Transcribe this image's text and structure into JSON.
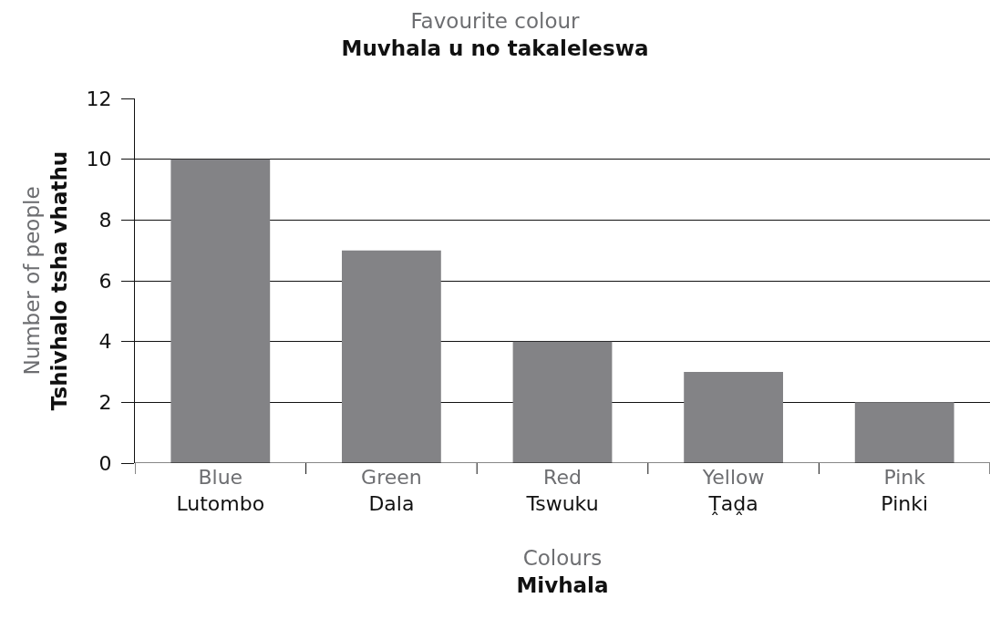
{
  "chart_data": {
    "type": "bar",
    "title": "Favourite colour\nMuvhala u no takaleleswa",
    "xlabel": "Colours\nMivhala",
    "ylabel": "Number of people\nTshivhalo tsha vhathu",
    "categories": [
      "Blue\nLutombo",
      "Green\nDala",
      "Red\nTswuku",
      "Yellow\nṰaḓa",
      "Pink\nPinki"
    ],
    "values": [
      10,
      7,
      4,
      3,
      2
    ],
    "color": "#838386",
    "ylim": [
      0,
      12
    ],
    "yticks": [
      0,
      2,
      4,
      6,
      8,
      10,
      12
    ],
    "grid": "y"
  }
}
